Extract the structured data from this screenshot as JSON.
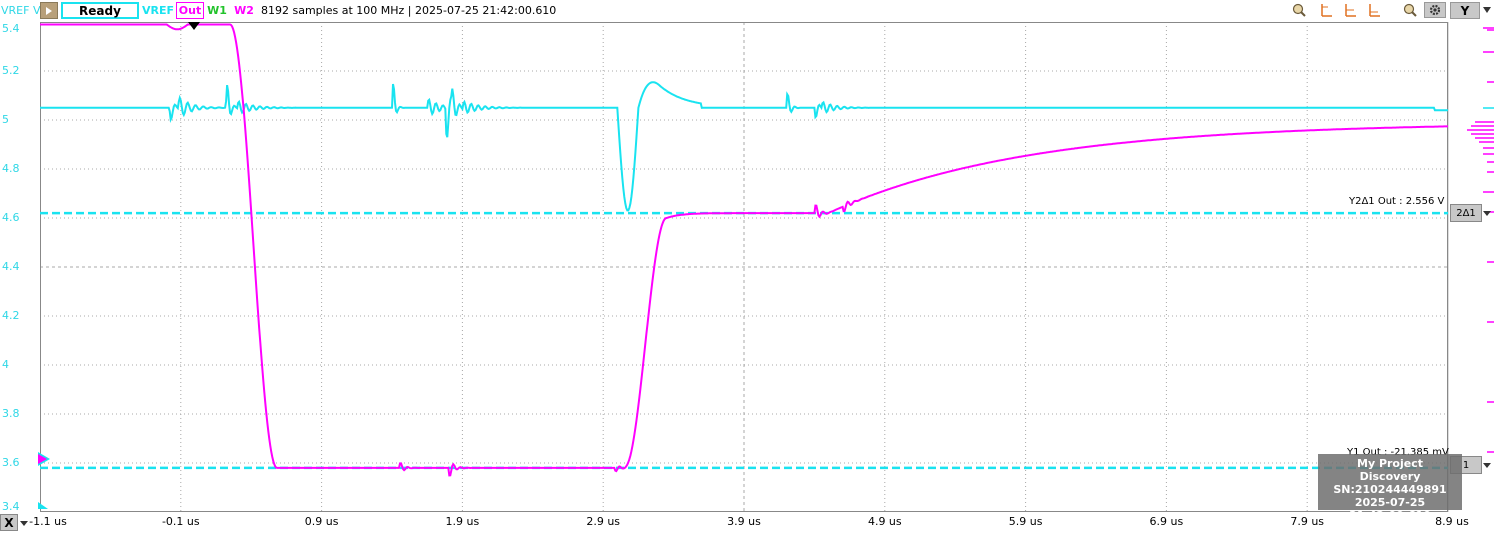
{
  "toolbar": {
    "axis_label": "VREF V",
    "status": "Ready",
    "channels": [
      {
        "label": "VREF",
        "color": "#19e3f0"
      },
      {
        "label": "Out",
        "color": "#ff00ff"
      },
      {
        "label": "W1",
        "color": "#22c32b"
      },
      {
        "label": "W2",
        "color": "#ff00ff"
      }
    ],
    "info": "8192 samples at 100 MHz | 2025-07-25 21:42:00.610",
    "y_button": "Y"
  },
  "chart_data": {
    "type": "line",
    "x_ticks": [
      "-1.1 us",
      "-0.1 us",
      "0.9 us",
      "1.9 us",
      "2.9 us",
      "3.9 us",
      "4.9 us",
      "5.9 us",
      "6.9 us",
      "7.9 us",
      "8.9 us"
    ],
    "y_ticks": [
      "5.4",
      "5.2",
      "5",
      "4.8",
      "4.6",
      "4.4",
      "4.2",
      "4",
      "3.8",
      "3.6",
      "3.4"
    ],
    "xlim": [
      -1.1,
      8.9
    ],
    "ylim": [
      3.4,
      5.4
    ],
    "series": [
      {
        "name": "VREF",
        "color": "#19e3f0"
      },
      {
        "name": "Out",
        "color": "#ff00ff"
      }
    ],
    "cursors": {
      "y2": {
        "label": "Y2Δ1 Out : 2.556 V",
        "value": 4.62,
        "marker": "2Δ1"
      },
      "y1": {
        "label": "Y1 Out : -21.385 mV",
        "value": 3.58,
        "marker": "1"
      }
    }
  },
  "watermark": {
    "lines": [
      "My Project",
      "Discovery",
      "SN:210244449891",
      "2025-07-25 21:42:00.610"
    ]
  },
  "x_axis_button": "X"
}
